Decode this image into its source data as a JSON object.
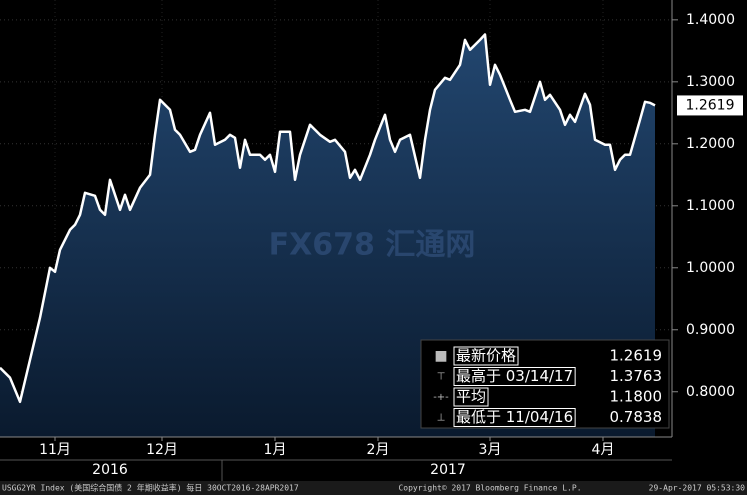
{
  "chart_data": {
    "type": "area",
    "series_name": "USGG2YR Index (美国综合国债 2 年期收益率)  每日 30OCT2016-28APR2017",
    "copyright": "Copyright© 2017 Bloomberg Finance L.P.",
    "timestamp": "29-Apr-2017 05:53:30",
    "watermark": "FX678 汇通网",
    "color": "#ffffff",
    "x": [
      0,
      2,
      4,
      6,
      8,
      10,
      11,
      12,
      14,
      15,
      16,
      17,
      19,
      20,
      21,
      22,
      24,
      25,
      26,
      28,
      30,
      31,
      32,
      34,
      35,
      36,
      38,
      39,
      40,
      42,
      43,
      45,
      46,
      47,
      48,
      49,
      50,
      52,
      53,
      54,
      55,
      56,
      58,
      59,
      60,
      62,
      63,
      64,
      66,
      67,
      69,
      70,
      71,
      72,
      74,
      75,
      77,
      78,
      79,
      80,
      82,
      84,
      85,
      86,
      87,
      89,
      90,
      92,
      93,
      94,
      96,
      97,
      98,
      99,
      100,
      102,
      103,
      105,
      106,
      108,
      109,
      110,
      112,
      113,
      114,
      115,
      117,
      118,
      119,
      121,
      122,
      123,
      124,
      125,
      126,
      128,
      129,
      130,
      131
    ],
    "values": [
      0.8387,
      0.8226,
      0.7838,
      0.8516,
      0.9194,
      1.0,
      0.9935,
      1.029,
      1.0613,
      1.0694,
      1.0855,
      1.121,
      1.1161,
      1.0935,
      1.0855,
      1.1419,
      1.0935,
      1.1177,
      1.0935,
      1.129,
      1.15,
      1.2145,
      1.271,
      1.2548,
      1.2226,
      1.2145,
      1.1871,
      1.1903,
      1.2145,
      1.25,
      1.1984,
      1.2065,
      1.2145,
      1.2097,
      1.1613,
      1.2065,
      1.1823,
      1.1823,
      1.1742,
      1.1823,
      1.1548,
      1.2194,
      1.2194,
      1.1419,
      1.1823,
      1.2306,
      1.2226,
      1.2145,
      1.2032,
      1.2065,
      1.1871,
      1.1452,
      1.1581,
      1.1419,
      1.1823,
      1.2065,
      1.2468,
      1.2065,
      1.1871,
      1.2065,
      1.2145,
      1.1452,
      1.2065,
      1.2548,
      1.2871,
      1.3065,
      1.3032,
      1.3274,
      1.3677,
      1.3516,
      1.3677,
      1.3763,
      1.2952,
      1.3274,
      1.3113,
      1.271,
      1.2516,
      1.2548,
      1.2516,
      1.3,
      1.271,
      1.279,
      1.2548,
      1.2306,
      1.2468,
      1.2355,
      1.2806,
      1.2629,
      1.2065,
      1.1984,
      1.1984,
      1.1581,
      1.1742,
      1.1823,
      1.1823,
      1.2387,
      1.2677,
      1.2661,
      1.2619
    ],
    "xlim": [
      0,
      134.4
    ],
    "xticks": [
      {
        "value": 11,
        "label": "11月"
      },
      {
        "value": 32.4,
        "label": "12月"
      },
      {
        "value": 55,
        "label": "1月"
      },
      {
        "value": 75.6,
        "label": "2月"
      },
      {
        "value": 98,
        "label": "3月"
      },
      {
        "value": 120.6,
        "label": "4月"
      }
    ],
    "years": [
      {
        "value": 22,
        "label": "2016"
      },
      {
        "value": 89.6,
        "label": "2017"
      }
    ],
    "ylim": [
      0.727,
      1.432
    ],
    "yticks": [
      {
        "value": 0.8,
        "label": "0.8000"
      },
      {
        "value": 0.9,
        "label": "0.9000"
      },
      {
        "value": 1.0,
        "label": "1.0000"
      },
      {
        "value": 1.1,
        "label": "1.1000"
      },
      {
        "value": 1.2,
        "label": "1.2000"
      },
      {
        "value": 1.3,
        "label": "1.3000"
      },
      {
        "value": 1.4,
        "label": "1.4000"
      }
    ],
    "grid": true,
    "legend": [
      {
        "label": "最新价格",
        "value": 1.2619
      },
      {
        "label": "最高于 03/14/17",
        "value": 1.3763
      },
      {
        "label": "平均",
        "value": {
          "value": 1.18,
          "label": "1.1800"
        }
      },
      {
        "label": "最低于 11/04/16",
        "value": 0.7838
      }
    ]
  }
}
